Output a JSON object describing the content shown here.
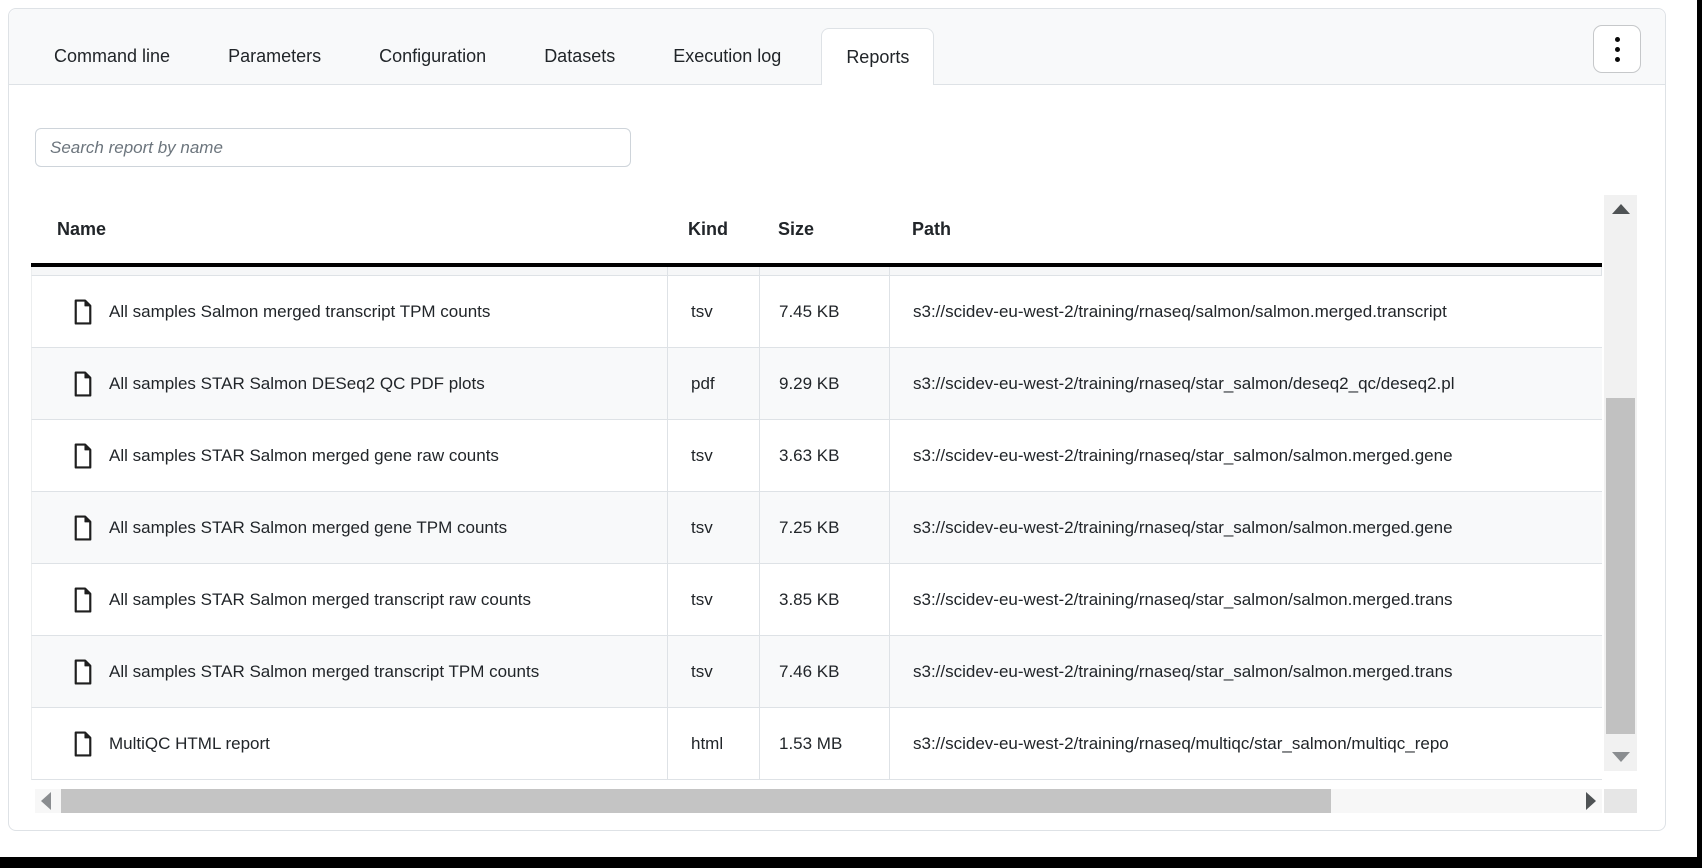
{
  "tabs": [
    {
      "label": "Command line",
      "active": false
    },
    {
      "label": "Parameters",
      "active": false
    },
    {
      "label": "Configuration",
      "active": false
    },
    {
      "label": "Datasets",
      "active": false
    },
    {
      "label": "Execution log",
      "active": false
    },
    {
      "label": "Reports",
      "active": true
    }
  ],
  "toolbar": {
    "kebab_menu_icon": "vertical-ellipsis"
  },
  "search": {
    "placeholder": "Search report by name",
    "value": ""
  },
  "table": {
    "columns": [
      "Name",
      "Kind",
      "Size",
      "Path"
    ],
    "row_icon": "file-document",
    "rows": [
      {
        "name": "All samples Salmon merged transcript TPM counts",
        "kind": "tsv",
        "size": "7.45 KB",
        "path": "s3://scidev-eu-west-2/training/rnaseq/salmon/salmon.merged.transcript"
      },
      {
        "name": "All samples STAR Salmon DESeq2 QC PDF plots",
        "kind": "pdf",
        "size": "9.29 KB",
        "path": "s3://scidev-eu-west-2/training/rnaseq/star_salmon/deseq2_qc/deseq2.pl"
      },
      {
        "name": "All samples STAR Salmon merged gene raw counts",
        "kind": "tsv",
        "size": "3.63 KB",
        "path": "s3://scidev-eu-west-2/training/rnaseq/star_salmon/salmon.merged.gene"
      },
      {
        "name": "All samples STAR Salmon merged gene TPM counts",
        "kind": "tsv",
        "size": "7.25 KB",
        "path": "s3://scidev-eu-west-2/training/rnaseq/star_salmon/salmon.merged.gene"
      },
      {
        "name": "All samples STAR Salmon merged transcript raw counts",
        "kind": "tsv",
        "size": "3.85 KB",
        "path": "s3://scidev-eu-west-2/training/rnaseq/star_salmon/salmon.merged.trans"
      },
      {
        "name": "All samples STAR Salmon merged transcript TPM counts",
        "kind": "tsv",
        "size": "7.46 KB",
        "path": "s3://scidev-eu-west-2/training/rnaseq/star_salmon/salmon.merged.trans"
      },
      {
        "name": "MultiQC HTML report",
        "kind": "html",
        "size": "1.53 MB",
        "path": "s3://scidev-eu-west-2/training/rnaseq/multiqc/star_salmon/multiqc_repo"
      }
    ]
  },
  "colors": {
    "tab_bar_bg": "#f8f9fa",
    "border": "#dee2e6",
    "header_rule": "#000000",
    "row_stripe": "#f8f9fa",
    "text": "#212529",
    "placeholder": "#6c757d",
    "scrollbar_thumb": "#c1c1c1",
    "scrollbar_track": "#f1f1f1"
  }
}
